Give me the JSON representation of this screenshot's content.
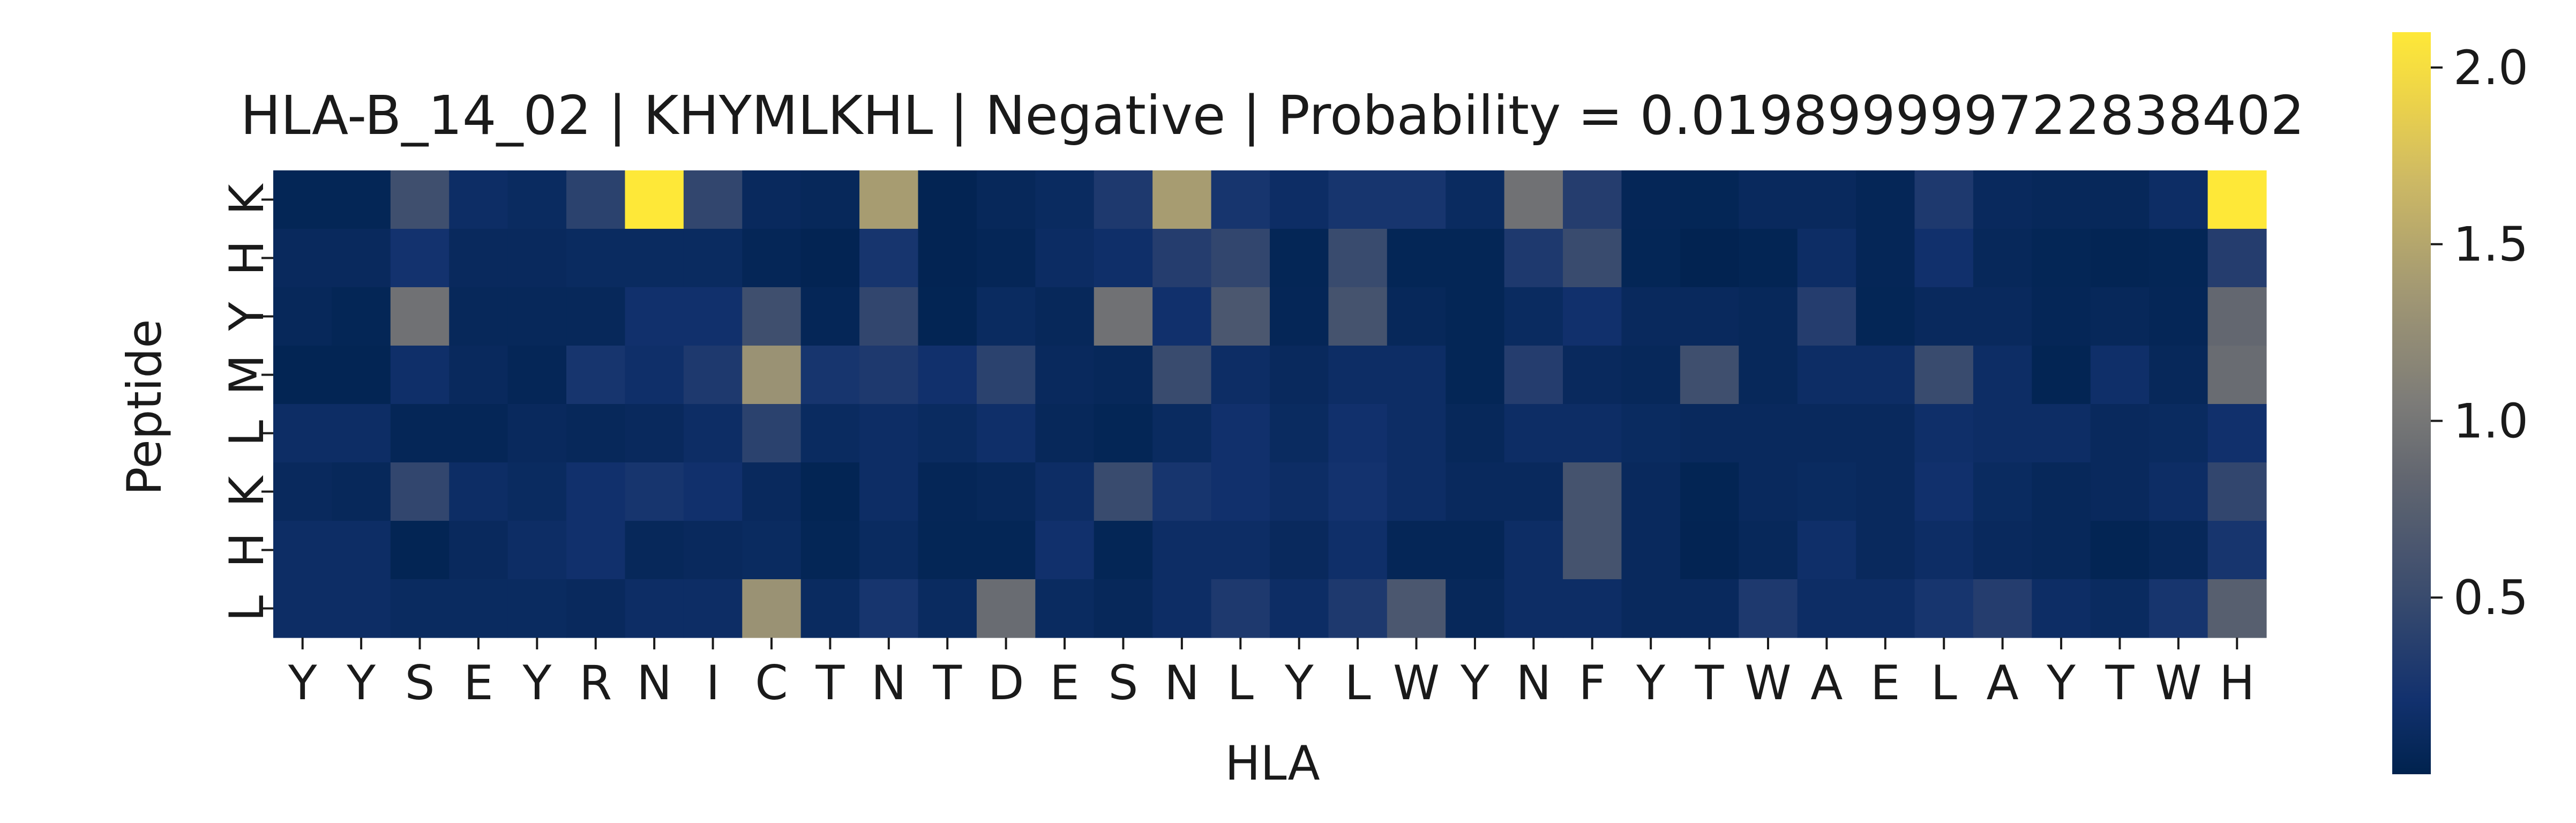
{
  "chart_data": {
    "type": "heatmap",
    "title": "HLA-B_14_02 | KHYMLKHL | Negative | Probability = 0.019899999722838402",
    "xlabel": "HLA",
    "ylabel": "Peptide",
    "x_categories": [
      "Y",
      "Y",
      "S",
      "E",
      "Y",
      "R",
      "N",
      "I",
      "C",
      "T",
      "N",
      "T",
      "D",
      "E",
      "S",
      "N",
      "L",
      "Y",
      "L",
      "W",
      "Y",
      "N",
      "F",
      "Y",
      "T",
      "W",
      "A",
      "E",
      "L",
      "A",
      "Y",
      "T",
      "W",
      "H"
    ],
    "y_categories": [
      "K",
      "H",
      "Y",
      "M",
      "L",
      "K",
      "H",
      "L"
    ],
    "colormap": "cividis",
    "colorbar": {
      "vmin": 0.0,
      "vmax": 2.1,
      "ticks": [
        0.5,
        1.0,
        1.5,
        2.0
      ],
      "tick_labels": [
        "0.5",
        "1.0",
        "1.5",
        "2.0"
      ]
    },
    "grid": false,
    "values": [
      [
        0.05,
        0.05,
        0.55,
        0.15,
        0.12,
        0.4,
        2.1,
        0.45,
        0.1,
        0.08,
        1.4,
        0.03,
        0.08,
        0.12,
        0.3,
        1.4,
        0.25,
        0.15,
        0.25,
        0.25,
        0.12,
        0.95,
        0.35,
        0.06,
        0.05,
        0.1,
        0.1,
        0.06,
        0.3,
        0.1,
        0.08,
        0.08,
        0.15,
        2.1
      ],
      [
        0.1,
        0.1,
        0.22,
        0.1,
        0.1,
        0.12,
        0.12,
        0.12,
        0.06,
        0.03,
        0.25,
        0.03,
        0.06,
        0.14,
        0.18,
        0.35,
        0.45,
        0.05,
        0.5,
        0.05,
        0.05,
        0.3,
        0.5,
        0.05,
        0.02,
        0.04,
        0.15,
        0.06,
        0.2,
        0.08,
        0.05,
        0.04,
        0.05,
        0.35
      ],
      [
        0.08,
        0.05,
        0.95,
        0.08,
        0.08,
        0.08,
        0.2,
        0.2,
        0.55,
        0.06,
        0.45,
        0.04,
        0.12,
        0.08,
        0.95,
        0.2,
        0.65,
        0.06,
        0.6,
        0.08,
        0.05,
        0.12,
        0.2,
        0.1,
        0.1,
        0.08,
        0.35,
        0.05,
        0.1,
        0.1,
        0.06,
        0.08,
        0.06,
        0.85
      ],
      [
        0.04,
        0.04,
        0.18,
        0.1,
        0.06,
        0.25,
        0.18,
        0.3,
        1.3,
        0.25,
        0.3,
        0.2,
        0.4,
        0.1,
        0.08,
        0.5,
        0.15,
        0.1,
        0.15,
        0.15,
        0.05,
        0.35,
        0.1,
        0.08,
        0.55,
        0.08,
        0.15,
        0.15,
        0.5,
        0.15,
        0.04,
        0.18,
        0.08,
        0.9
      ],
      [
        0.15,
        0.15,
        0.06,
        0.06,
        0.1,
        0.08,
        0.1,
        0.15,
        0.4,
        0.12,
        0.15,
        0.12,
        0.18,
        0.08,
        0.05,
        0.12,
        0.2,
        0.12,
        0.2,
        0.15,
        0.08,
        0.15,
        0.15,
        0.12,
        0.1,
        0.1,
        0.1,
        0.1,
        0.18,
        0.15,
        0.15,
        0.1,
        0.12,
        0.2
      ],
      [
        0.1,
        0.08,
        0.45,
        0.15,
        0.12,
        0.2,
        0.25,
        0.2,
        0.1,
        0.04,
        0.15,
        0.06,
        0.08,
        0.15,
        0.5,
        0.25,
        0.2,
        0.15,
        0.22,
        0.15,
        0.1,
        0.1,
        0.6,
        0.1,
        0.04,
        0.1,
        0.12,
        0.1,
        0.2,
        0.12,
        0.08,
        0.1,
        0.15,
        0.45
      ],
      [
        0.15,
        0.15,
        0.04,
        0.1,
        0.15,
        0.2,
        0.08,
        0.1,
        0.12,
        0.05,
        0.12,
        0.05,
        0.05,
        0.2,
        0.05,
        0.15,
        0.15,
        0.1,
        0.18,
        0.06,
        0.06,
        0.15,
        0.6,
        0.1,
        0.03,
        0.08,
        0.18,
        0.1,
        0.15,
        0.1,
        0.08,
        0.04,
        0.08,
        0.25
      ],
      [
        0.15,
        0.15,
        0.12,
        0.12,
        0.12,
        0.1,
        0.15,
        0.15,
        1.3,
        0.12,
        0.25,
        0.12,
        0.9,
        0.12,
        0.08,
        0.15,
        0.3,
        0.15,
        0.3,
        0.65,
        0.08,
        0.15,
        0.15,
        0.1,
        0.1,
        0.3,
        0.15,
        0.15,
        0.25,
        0.35,
        0.15,
        0.12,
        0.25,
        0.75
      ]
    ]
  }
}
